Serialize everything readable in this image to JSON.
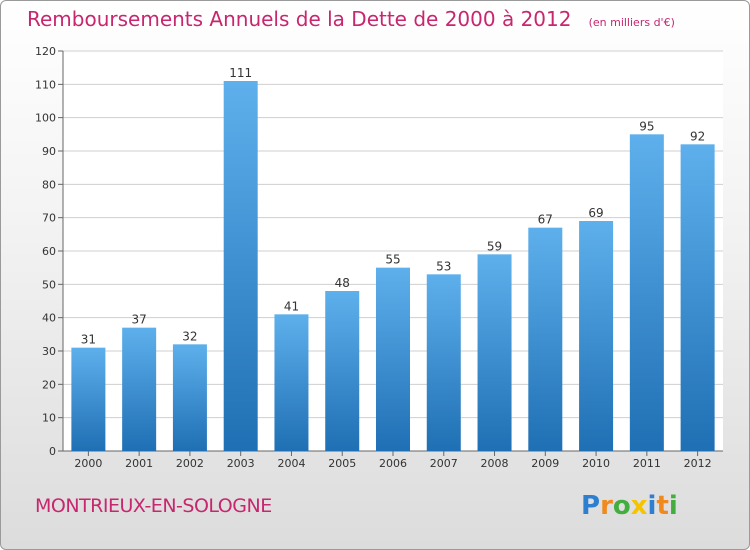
{
  "header": {
    "title": "Remboursements Annuels de la Dette de 2000 à 2012",
    "subtitle": "(en milliers d'€)"
  },
  "footer": {
    "commune": "MONTRIEUX-EN-SOLOGNE",
    "logo_text": "Proxiti",
    "logo_letters": [
      {
        "char": "P",
        "color": "#2e7fd0"
      },
      {
        "char": "r",
        "color": "#f08a1e"
      },
      {
        "char": "o",
        "color": "#44ad3f"
      },
      {
        "char": "x",
        "color": "#f5c400"
      },
      {
        "char": "i",
        "color": "#2e7fd0"
      },
      {
        "char": "t",
        "color": "#f08a1e"
      },
      {
        "char": "i",
        "color": "#44ad3f"
      }
    ]
  },
  "colors": {
    "title": "#c8266e",
    "bar_top": "#5eb0ec",
    "bar_bottom": "#1f6fb4",
    "grid": "#cfcfcf"
  },
  "chart_data": {
    "type": "bar",
    "title": "Remboursements Annuels de la Dette de 2000 à 2012",
    "xlabel": "",
    "ylabel": "",
    "categories": [
      "2000",
      "2001",
      "2002",
      "2003",
      "2004",
      "2005",
      "2006",
      "2007",
      "2008",
      "2009",
      "2010",
      "2011",
      "2012"
    ],
    "values": [
      31,
      37,
      32,
      111,
      41,
      48,
      55,
      53,
      59,
      67,
      69,
      95,
      92
    ],
    "ylim": [
      0,
      120
    ],
    "yticks": [
      0,
      10,
      20,
      30,
      40,
      50,
      60,
      70,
      80,
      90,
      100,
      110,
      120
    ],
    "grid": true,
    "data_labels": true
  }
}
